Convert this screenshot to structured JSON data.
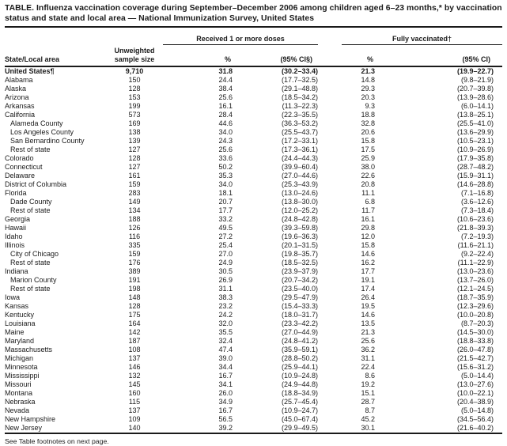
{
  "title": "TABLE. Influenza vaccination coverage during September–December 2006 among children aged 6–23 months,* by vaccination status and state and local area — National Immunization Survey, United States",
  "footer": "See Table footnotes on next page.",
  "colors": {
    "ink": "#1a1a1a",
    "background": "#ffffff"
  },
  "table": {
    "columns": {
      "state": "State/Local area",
      "sample_line1": "Unweighted",
      "sample_line2": "sample size",
      "group_received": "Received 1 or more doses",
      "group_fully": "Fully vaccinated†",
      "pct_received": "%",
      "ci_received": "(95% CI§)",
      "pct_fully": "%",
      "ci_fully": "(95% CI)"
    },
    "rows": [
      {
        "area": "United States¶",
        "indent": false,
        "bold": true,
        "sample": "9,710",
        "received_pct": "31.8",
        "received_ci": "(30.2–33.4)",
        "fully_pct": "21.3",
        "fully_ci": "(19.9–22.7)"
      },
      {
        "area": "Alabama",
        "indent": false,
        "bold": false,
        "sample": "150",
        "received_pct": "24.4",
        "received_ci": "(17.7–32.5)",
        "fully_pct": "14.8",
        "fully_ci": "(9.8–21.9)"
      },
      {
        "area": "Alaska",
        "indent": false,
        "bold": false,
        "sample": "128",
        "received_pct": "38.4",
        "received_ci": "(29.1–48.8)",
        "fully_pct": "29.3",
        "fully_ci": "(20.7–39.8)"
      },
      {
        "area": "Arizona",
        "indent": false,
        "bold": false,
        "sample": "153",
        "received_pct": "25.6",
        "received_ci": "(18.5–34.2)",
        "fully_pct": "20.3",
        "fully_ci": "(13.9–28.6)"
      },
      {
        "area": "Arkansas",
        "indent": false,
        "bold": false,
        "sample": "199",
        "received_pct": "16.1",
        "received_ci": "(11.3–22.3)",
        "fully_pct": "9.3",
        "fully_ci": "(6.0–14.1)"
      },
      {
        "area": "California",
        "indent": false,
        "bold": false,
        "sample": "573",
        "received_pct": "28.4",
        "received_ci": "(22.3–35.5)",
        "fully_pct": "18.8",
        "fully_ci": "(13.8–25.1)"
      },
      {
        "area": "Alameda County",
        "indent": true,
        "bold": false,
        "sample": "169",
        "received_pct": "44.6",
        "received_ci": "(36.3–53.2)",
        "fully_pct": "32.8",
        "fully_ci": "(25.5–41.0)"
      },
      {
        "area": "Los Angeles County",
        "indent": true,
        "bold": false,
        "sample": "138",
        "received_pct": "34.0",
        "received_ci": "(25.5–43.7)",
        "fully_pct": "20.6",
        "fully_ci": "(13.6–29.9)"
      },
      {
        "area": "San Bernardino County",
        "indent": true,
        "bold": false,
        "sample": "139",
        "received_pct": "24.3",
        "received_ci": "(17.2–33.1)",
        "fully_pct": "15.8",
        "fully_ci": "(10.5–23.1)"
      },
      {
        "area": "Rest of state",
        "indent": true,
        "bold": false,
        "sample": "127",
        "received_pct": "25.6",
        "received_ci": "(17.3–36.1)",
        "fully_pct": "17.5",
        "fully_ci": "(10.9–26.9)"
      },
      {
        "area": "Colorado",
        "indent": false,
        "bold": false,
        "sample": "128",
        "received_pct": "33.6",
        "received_ci": "(24.4–44.3)",
        "fully_pct": "25.9",
        "fully_ci": "(17.9–35.8)"
      },
      {
        "area": "Connecticut",
        "indent": false,
        "bold": false,
        "sample": "127",
        "received_pct": "50.2",
        "received_ci": "(39.9–60.4)",
        "fully_pct": "38.0",
        "fully_ci": "(28.7–48.2)"
      },
      {
        "area": "Delaware",
        "indent": false,
        "bold": false,
        "sample": "161",
        "received_pct": "35.3",
        "received_ci": "(27.0–44.6)",
        "fully_pct": "22.6",
        "fully_ci": "(15.9–31.1)"
      },
      {
        "area": "District of Columbia",
        "indent": false,
        "bold": false,
        "sample": "159",
        "received_pct": "34.0",
        "received_ci": "(25.3–43.9)",
        "fully_pct": "20.8",
        "fully_ci": "(14.6–28.8)"
      },
      {
        "area": "Florida",
        "indent": false,
        "bold": false,
        "sample": "283",
        "received_pct": "18.1",
        "received_ci": "(13.0–24.6)",
        "fully_pct": "11.1",
        "fully_ci": "(7.1–16.8)"
      },
      {
        "area": "Dade County",
        "indent": true,
        "bold": false,
        "sample": "149",
        "received_pct": "20.7",
        "received_ci": "(13.8–30.0)",
        "fully_pct": "6.8",
        "fully_ci": "(3.6–12.6)"
      },
      {
        "area": "Rest of state",
        "indent": true,
        "bold": false,
        "sample": "134",
        "received_pct": "17.7",
        "received_ci": "(12.0–25.2)",
        "fully_pct": "11.7",
        "fully_ci": "(7.3–18.4)"
      },
      {
        "area": "Georgia",
        "indent": false,
        "bold": false,
        "sample": "188",
        "received_pct": "33.2",
        "received_ci": "(24.8–42.8)",
        "fully_pct": "16.1",
        "fully_ci": "(10.6–23.6)"
      },
      {
        "area": "Hawaii",
        "indent": false,
        "bold": false,
        "sample": "126",
        "received_pct": "49.5",
        "received_ci": "(39.3–59.8)",
        "fully_pct": "29.8",
        "fully_ci": "(21.8–39.3)"
      },
      {
        "area": "Idaho",
        "indent": false,
        "bold": false,
        "sample": "116",
        "received_pct": "27.2",
        "received_ci": "(19.6–36.3)",
        "fully_pct": "12.0",
        "fully_ci": "(7.2–19.3)"
      },
      {
        "area": "Illinois",
        "indent": false,
        "bold": false,
        "sample": "335",
        "received_pct": "25.4",
        "received_ci": "(20.1–31.5)",
        "fully_pct": "15.8",
        "fully_ci": "(11.6–21.1)"
      },
      {
        "area": "City of Chicago",
        "indent": true,
        "bold": false,
        "sample": "159",
        "received_pct": "27.0",
        "received_ci": "(19.8–35.7)",
        "fully_pct": "14.6",
        "fully_ci": "(9.2–22.4)"
      },
      {
        "area": "Rest of state",
        "indent": true,
        "bold": false,
        "sample": "176",
        "received_pct": "24.9",
        "received_ci": "(18.5–32.5)",
        "fully_pct": "16.2",
        "fully_ci": "(11.1–22.9)"
      },
      {
        "area": "Indiana",
        "indent": false,
        "bold": false,
        "sample": "389",
        "received_pct": "30.5",
        "received_ci": "(23.9–37.9)",
        "fully_pct": "17.7",
        "fully_ci": "(13.0–23.6)"
      },
      {
        "area": "Marion County",
        "indent": true,
        "bold": false,
        "sample": "191",
        "received_pct": "26.9",
        "received_ci": "(20.7–34.2)",
        "fully_pct": "19.1",
        "fully_ci": "(13.7–26.0)"
      },
      {
        "area": "Rest of state",
        "indent": true,
        "bold": false,
        "sample": "198",
        "received_pct": "31.1",
        "received_ci": "(23.5–40.0)",
        "fully_pct": "17.4",
        "fully_ci": "(12.1–24.5)"
      },
      {
        "area": "Iowa",
        "indent": false,
        "bold": false,
        "sample": "148",
        "received_pct": "38.3",
        "received_ci": "(29.5–47.9)",
        "fully_pct": "26.4",
        "fully_ci": "(18.7–35.9)"
      },
      {
        "area": "Kansas",
        "indent": false,
        "bold": false,
        "sample": "128",
        "received_pct": "23.2",
        "received_ci": "(15.4–33.3)",
        "fully_pct": "19.5",
        "fully_ci": "(12.3–29.6)"
      },
      {
        "area": "Kentucky",
        "indent": false,
        "bold": false,
        "sample": "175",
        "received_pct": "24.2",
        "received_ci": "(18.0–31.7)",
        "fully_pct": "14.6",
        "fully_ci": "(10.0–20.8)"
      },
      {
        "area": "Louisiana",
        "indent": false,
        "bold": false,
        "sample": "164",
        "received_pct": "32.0",
        "received_ci": "(23.3–42.2)",
        "fully_pct": "13.5",
        "fully_ci": "(8.7–20.3)"
      },
      {
        "area": "Maine",
        "indent": false,
        "bold": false,
        "sample": "142",
        "received_pct": "35.5",
        "received_ci": "(27.0–44.9)",
        "fully_pct": "21.3",
        "fully_ci": "(14.5–30.0)"
      },
      {
        "area": "Maryland",
        "indent": false,
        "bold": false,
        "sample": "187",
        "received_pct": "32.4",
        "received_ci": "(24.8–41.2)",
        "fully_pct": "25.6",
        "fully_ci": "(18.8–33.8)"
      },
      {
        "area": "Massachusetts",
        "indent": false,
        "bold": false,
        "sample": "108",
        "received_pct": "47.4",
        "received_ci": "(35.9–59.1)",
        "fully_pct": "36.2",
        "fully_ci": "(26.0–47.8)"
      },
      {
        "area": "Michigan",
        "indent": false,
        "bold": false,
        "sample": "137",
        "received_pct": "39.0",
        "received_ci": "(28.8–50.2)",
        "fully_pct": "31.1",
        "fully_ci": "(21.5–42.7)"
      },
      {
        "area": "Minnesota",
        "indent": false,
        "bold": false,
        "sample": "146",
        "received_pct": "34.4",
        "received_ci": "(25.9–44.1)",
        "fully_pct": "22.4",
        "fully_ci": "(15.6–31.2)"
      },
      {
        "area": "Mississippi",
        "indent": false,
        "bold": false,
        "sample": "132",
        "received_pct": "16.7",
        "received_ci": "(10.9–24.8)",
        "fully_pct": "8.6",
        "fully_ci": "(5.0–14.4)"
      },
      {
        "area": "Missouri",
        "indent": false,
        "bold": false,
        "sample": "145",
        "received_pct": "34.1",
        "received_ci": "(24.9–44.8)",
        "fully_pct": "19.2",
        "fully_ci": "(13.0–27.6)"
      },
      {
        "area": "Montana",
        "indent": false,
        "bold": false,
        "sample": "160",
        "received_pct": "26.0",
        "received_ci": "(18.8–34.9)",
        "fully_pct": "15.1",
        "fully_ci": "(10.0–22.1)"
      },
      {
        "area": "Nebraska",
        "indent": false,
        "bold": false,
        "sample": "115",
        "received_pct": "34.9",
        "received_ci": "(25.7–45.4)",
        "fully_pct": "28.7",
        "fully_ci": "(20.4–38.9)"
      },
      {
        "area": "Nevada",
        "indent": false,
        "bold": false,
        "sample": "137",
        "received_pct": "16.7",
        "received_ci": "(10.9–24.7)",
        "fully_pct": "8.7",
        "fully_ci": "(5.0–14.8)"
      },
      {
        "area": "New Hampshire",
        "indent": false,
        "bold": false,
        "sample": "109",
        "received_pct": "56.5",
        "received_ci": "(45.0–67.4)",
        "fully_pct": "45.2",
        "fully_ci": "(34.5–56.4)"
      },
      {
        "area": "New Jersey",
        "indent": false,
        "bold": false,
        "sample": "140",
        "received_pct": "39.2",
        "received_ci": "(29.9–49.5)",
        "fully_pct": "30.1",
        "fully_ci": "(21.6–40.2)"
      }
    ]
  }
}
